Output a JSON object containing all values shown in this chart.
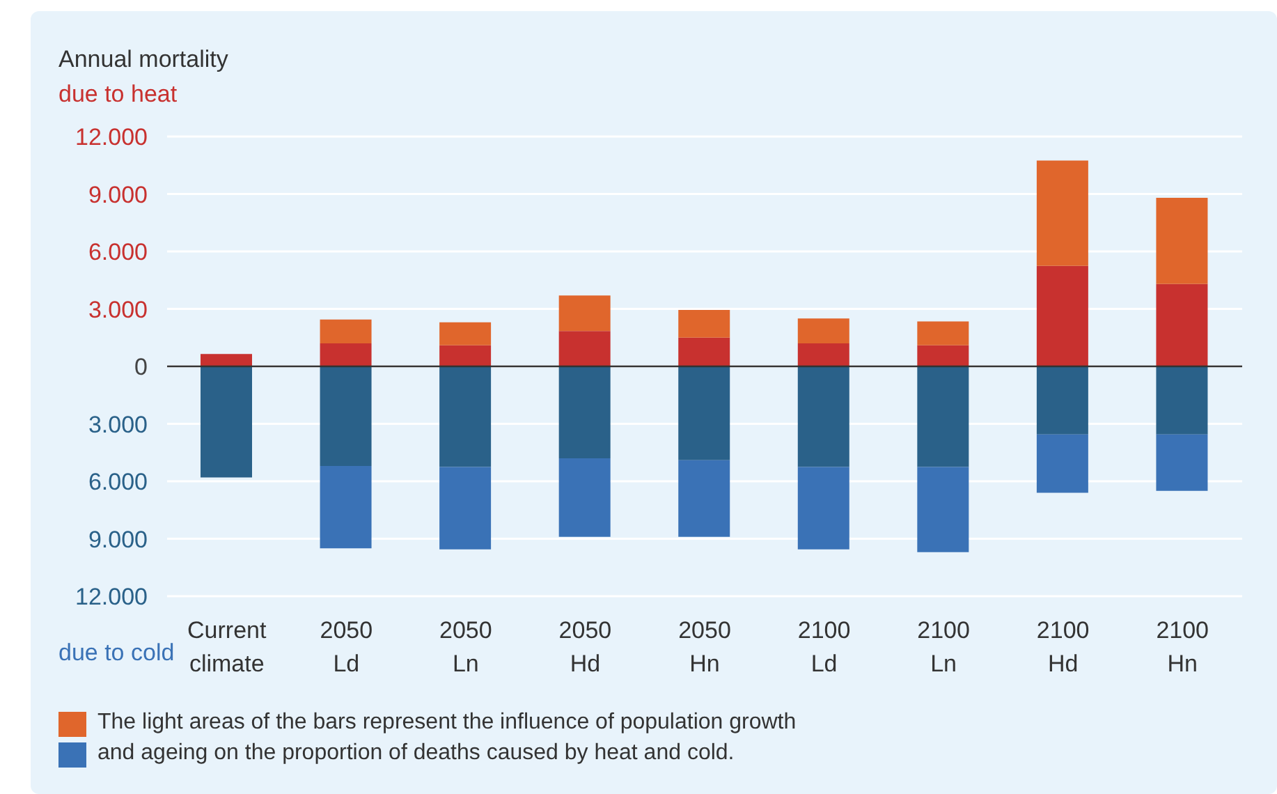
{
  "chart_data": {
    "type": "bar",
    "stacked": true,
    "ylabel": "Annual mortality",
    "categories": [
      "Current\nclimate",
      "2050\nLd",
      "2050\nLn",
      "2050\nHd",
      "2050\nHn",
      "2100\nLd",
      "2100\nLn",
      "2100\nHd",
      "2100\nHn"
    ],
    "series": [
      {
        "color": "#c8312f",
        "values": [
          650,
          1200,
          1100,
          1850,
          1500,
          1200,
          1100,
          5250,
          4300
        ]
      },
      {
        "color": "#e0662c",
        "values": [
          null,
          1250,
          1200,
          1850,
          1450,
          1300,
          1250,
          5500,
          4500
        ]
      },
      {
        "color": "#2a6189",
        "values": [
          -5800,
          -5200,
          -5250,
          -4800,
          -4900,
          -5250,
          -5250,
          -3550,
          -3550
        ]
      },
      {
        "color": "#3a72b6",
        "values": [
          null,
          -4300,
          -4300,
          -4100,
          -4000,
          -4300,
          -4450,
          -3050,
          -2950
        ]
      }
    ],
    "ylim": [
      -12000,
      12000
    ],
    "yticks": [
      {
        "value": -12000,
        "label": "12.000"
      },
      {
        "value": -9000,
        "label": "9.000"
      },
      {
        "value": -6000,
        "label": "6.000"
      },
      {
        "value": -3000,
        "label": "3.000"
      },
      0,
      {
        "value": 3000,
        "label": "3.000"
      },
      {
        "value": 6000,
        "label": "6.000"
      },
      {
        "value": 9000,
        "label": "9.000"
      },
      {
        "value": 12000,
        "label": "12.000"
      }
    ],
    "grid": "y",
    "ref_lines": [
      {
        "axis": "y",
        "value": 0,
        "color": "#333333"
      }
    ],
    "annotations": [
      "due to heat",
      "due to cold",
      "The light areas of the bars represent the influence of population growth\nand ageing on the proportion of deaths caused by heat and cold."
    ]
  }
}
